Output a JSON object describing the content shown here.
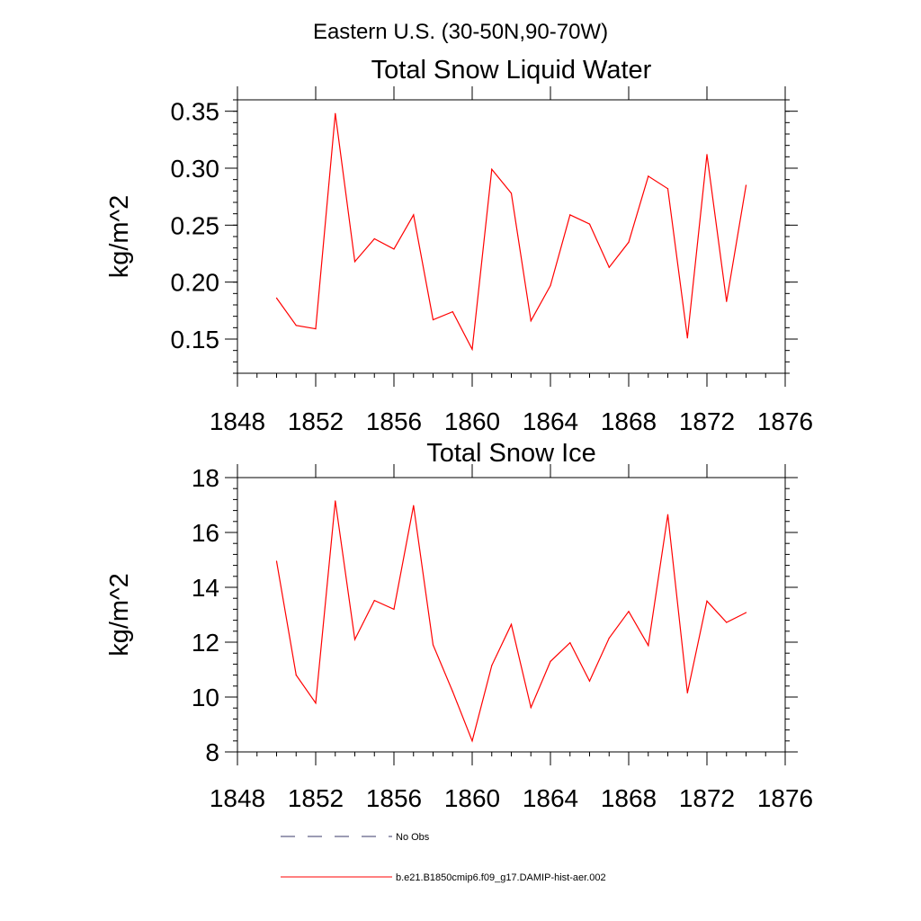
{
  "figure": {
    "title": "Eastern U.S. (30-50N,90-70W)"
  },
  "chart_data": [
    {
      "type": "line",
      "title": "Total Snow Liquid Water",
      "xlabel": "",
      "ylabel": "kg/m^2",
      "xlim": [
        1848,
        1876
      ],
      "ylim": [
        0.12,
        0.36
      ],
      "xticks": [
        1848,
        1852,
        1856,
        1860,
        1864,
        1868,
        1872,
        1876
      ],
      "xtick_labels": [
        "1848",
        "1852",
        "1856",
        "1860",
        "1864",
        "1868",
        "1872",
        "1876"
      ],
      "yticks": [
        0.15,
        0.2,
        0.25,
        0.3,
        0.35
      ],
      "ytick_labels": [
        "0.15",
        "0.20",
        "0.25",
        "0.30",
        "0.35"
      ],
      "grid": false,
      "x": [
        1850,
        1851,
        1852,
        1853,
        1854,
        1855,
        1856,
        1857,
        1858,
        1859,
        1860,
        1861,
        1862,
        1863,
        1864,
        1865,
        1866,
        1867,
        1868,
        1869,
        1870,
        1871,
        1872,
        1873,
        1874
      ],
      "series": [
        {
          "name": "b.e21.B1850cmip6.f09_g17.DAMIP-hist-aer.002",
          "color": "#ff0000",
          "values": [
            0.186,
            0.162,
            0.159,
            0.348,
            0.218,
            0.238,
            0.229,
            0.259,
            0.167,
            0.174,
            0.141,
            0.299,
            0.278,
            0.166,
            0.197,
            0.259,
            0.251,
            0.213,
            0.235,
            0.293,
            0.282,
            0.151,
            0.312,
            0.183,
            0.285
          ]
        }
      ]
    },
    {
      "type": "line",
      "title": "Total Snow Ice",
      "xlabel": "",
      "ylabel": "kg/m^2",
      "xlim": [
        1848,
        1876
      ],
      "ylim": [
        8,
        18
      ],
      "xticks": [
        1848,
        1852,
        1856,
        1860,
        1864,
        1868,
        1872,
        1876
      ],
      "xtick_labels": [
        "1848",
        "1852",
        "1856",
        "1860",
        "1864",
        "1868",
        "1872",
        "1876"
      ],
      "yticks": [
        8,
        10,
        12,
        14,
        16,
        18
      ],
      "ytick_labels": [
        "8",
        "10",
        "12",
        "14",
        "16",
        "18"
      ],
      "grid": false,
      "x": [
        1850,
        1851,
        1852,
        1853,
        1854,
        1855,
        1856,
        1857,
        1858,
        1859,
        1860,
        1861,
        1862,
        1863,
        1864,
        1865,
        1866,
        1867,
        1868,
        1869,
        1870,
        1871,
        1872,
        1873,
        1874
      ],
      "series": [
        {
          "name": "b.e21.B1850cmip6.f09_g17.DAMIP-hist-aer.002",
          "color": "#ff0000",
          "values": [
            14.95,
            10.8,
            9.78,
            17.15,
            12.1,
            13.52,
            13.2,
            16.98,
            11.9,
            10.2,
            8.4,
            11.15,
            12.65,
            9.62,
            11.3,
            11.98,
            10.58,
            12.15,
            13.12,
            11.88,
            16.65,
            10.15,
            13.5,
            12.72,
            13.08
          ]
        }
      ]
    }
  ],
  "legend": {
    "placement": "bottom",
    "entries": [
      {
        "label": "No Obs",
        "style": "dashed",
        "color": "#3a3a6a"
      },
      {
        "label": "b.e21.B1850cmip6.f09_g17.DAMIP-hist-aer.002",
        "style": "solid",
        "color": "#ff0000"
      }
    ]
  }
}
